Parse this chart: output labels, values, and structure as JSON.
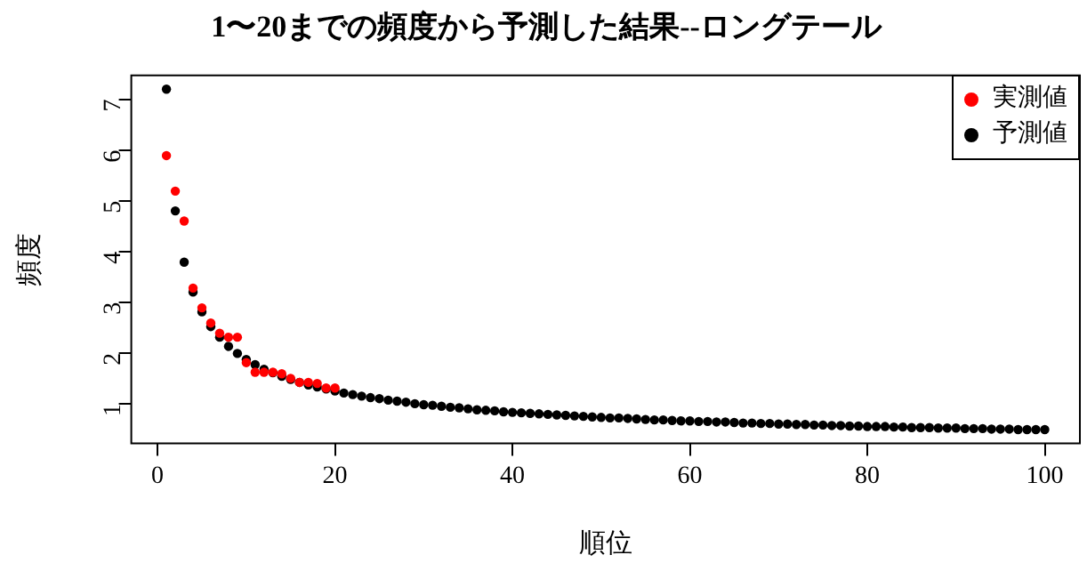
{
  "chart_data": {
    "type": "scatter",
    "title": "1〜20までの頻度から予測した結果--ロングテール",
    "xlabel": "順位",
    "ylabel": "頻度",
    "xlim": [
      -2.96,
      103.96
    ],
    "xticks": [
      0,
      20,
      40,
      60,
      80,
      100
    ],
    "ylim": [
      0.22,
      7.47
    ],
    "yticks": [
      1,
      2,
      3,
      4,
      5,
      6,
      7
    ],
    "grid": false,
    "legend": "top right",
    "marker": "circle",
    "series": [
      {
        "name": "実測値",
        "color": "#ff0000",
        "x": [
          1,
          2,
          3,
          4,
          5,
          6,
          7,
          8,
          9,
          10,
          11,
          12,
          13,
          14,
          15,
          16,
          17,
          18,
          19,
          20
        ],
        "values": [
          5.89,
          5.19,
          4.6,
          3.28,
          2.89,
          2.59,
          2.39,
          2.31,
          2.31,
          1.81,
          1.62,
          1.62,
          1.62,
          1.59,
          1.5,
          1.42,
          1.42,
          1.4,
          1.31,
          1.31
        ]
      },
      {
        "name": "予測値",
        "color": "#000000",
        "x": [
          1,
          2,
          3,
          4,
          5,
          6,
          7,
          8,
          9,
          10,
          11,
          12,
          13,
          14,
          15,
          16,
          17,
          18,
          19,
          20,
          21,
          22,
          23,
          24,
          25,
          26,
          27,
          28,
          29,
          30,
          31,
          32,
          33,
          34,
          35,
          36,
          37,
          38,
          39,
          40,
          41,
          42,
          43,
          44,
          45,
          46,
          47,
          48,
          49,
          50,
          51,
          52,
          53,
          54,
          55,
          56,
          57,
          58,
          59,
          60,
          61,
          62,
          63,
          64,
          65,
          66,
          67,
          68,
          69,
          70,
          71,
          72,
          73,
          74,
          75,
          76,
          77,
          78,
          79,
          80,
          81,
          82,
          83,
          84,
          85,
          86,
          87,
          88,
          89,
          90,
          91,
          92,
          93,
          94,
          95,
          96,
          97,
          98,
          99,
          100
        ],
        "values": [
          7.2,
          4.8,
          3.79,
          3.2,
          2.81,
          2.52,
          2.31,
          2.13,
          1.99,
          1.87,
          1.77,
          1.68,
          1.61,
          1.54,
          1.48,
          1.42,
          1.37,
          1.33,
          1.29,
          1.25,
          1.21,
          1.18,
          1.15,
          1.12,
          1.1,
          1.07,
          1.05,
          1.03,
          1.0,
          0.98,
          0.97,
          0.95,
          0.93,
          0.92,
          0.9,
          0.88,
          0.87,
          0.86,
          0.84,
          0.83,
          0.82,
          0.81,
          0.8,
          0.79,
          0.78,
          0.77,
          0.76,
          0.75,
          0.74,
          0.73,
          0.72,
          0.72,
          0.71,
          0.7,
          0.69,
          0.68,
          0.68,
          0.67,
          0.66,
          0.66,
          0.65,
          0.65,
          0.64,
          0.64,
          0.63,
          0.62,
          0.62,
          0.61,
          0.61,
          0.6,
          0.6,
          0.59,
          0.59,
          0.58,
          0.58,
          0.57,
          0.57,
          0.56,
          0.56,
          0.55,
          0.55,
          0.55,
          0.54,
          0.54,
          0.53,
          0.53,
          0.53,
          0.52,
          0.52,
          0.52,
          0.51,
          0.51,
          0.51,
          0.5,
          0.5,
          0.5,
          0.49,
          0.49,
          0.49,
          0.49
        ]
      }
    ]
  }
}
